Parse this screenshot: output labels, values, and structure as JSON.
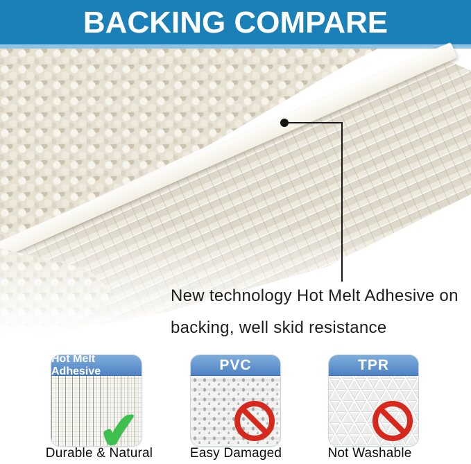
{
  "banner": {
    "title": "BACKING COMPARE"
  },
  "callout": {
    "line1": "New technology Hot Melt Adhesive on",
    "line2": "backing, well skid resistance"
  },
  "comparison": {
    "cards": [
      {
        "header": "Hot Melt Adhesive",
        "caption": "Durable & Natural",
        "verdict": "good"
      },
      {
        "header": "PVC",
        "caption": "Easy Damaged",
        "verdict": "bad"
      },
      {
        "header": "TPR",
        "caption": "Not Washable",
        "verdict": "bad"
      }
    ]
  },
  "icons": {
    "check": "✔"
  },
  "colors": {
    "banner_bg": "#1b80b8",
    "banner_strip": "#8fc2e3",
    "card_header_top": "#7fadda",
    "card_header_bottom": "#4f82c4",
    "check_green": "#3ec04f",
    "prohibition_red": "#d5291d",
    "callout_ink": "#151515"
  }
}
